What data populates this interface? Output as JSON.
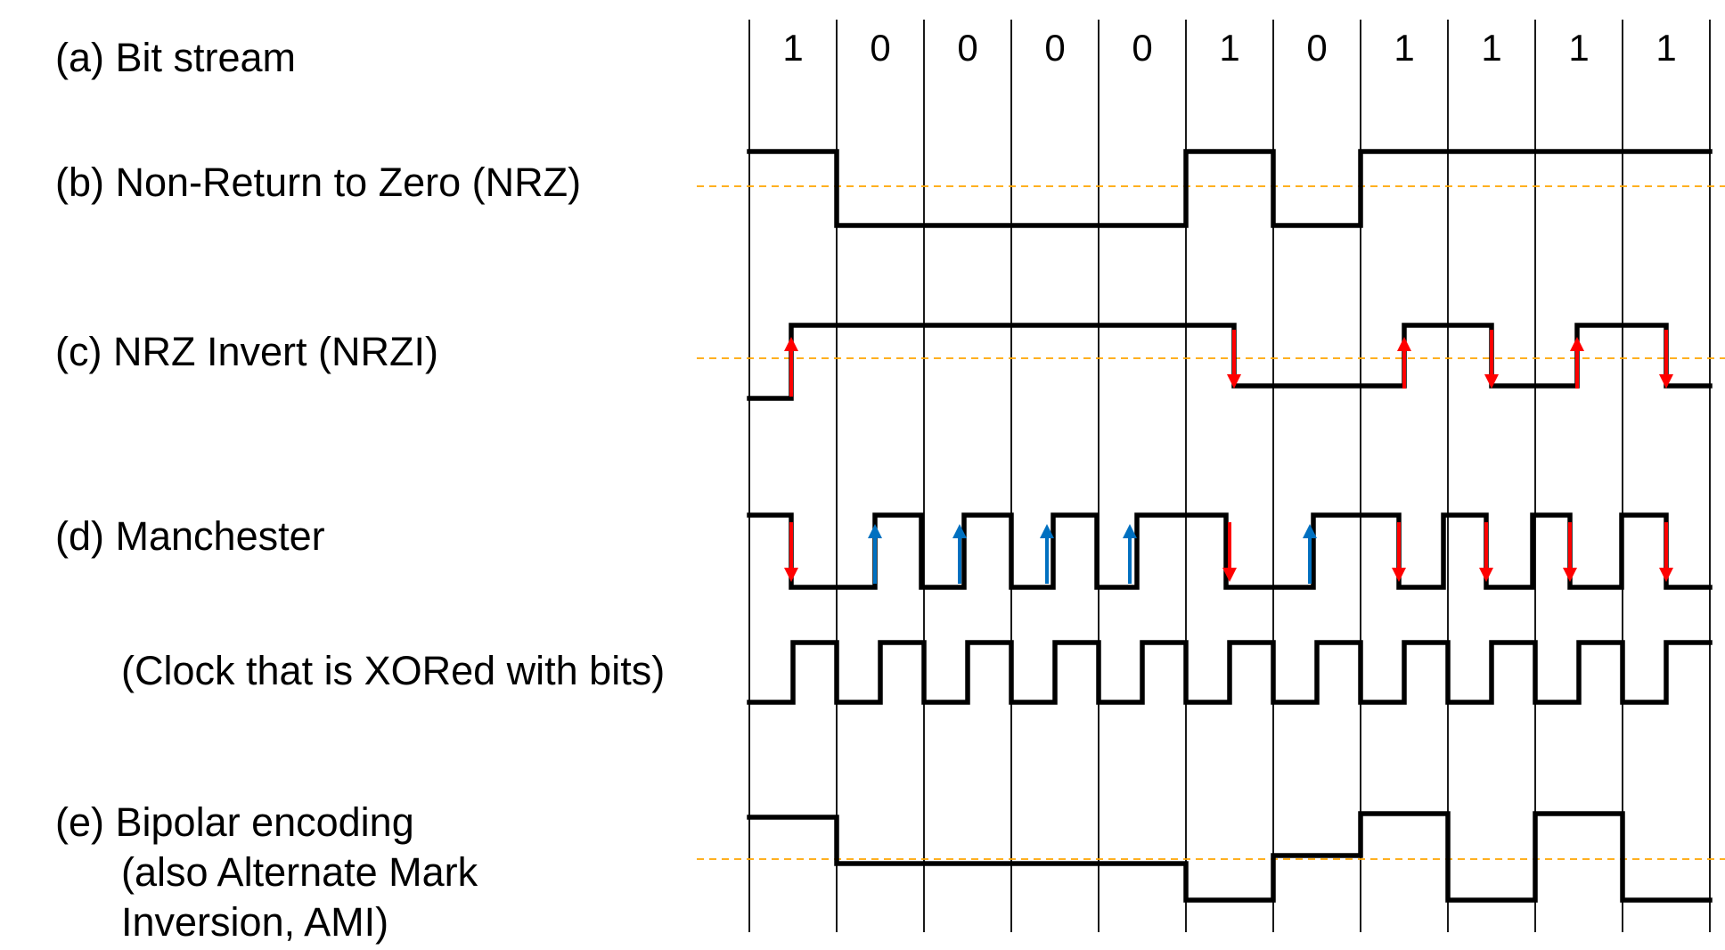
{
  "labels": {
    "bit_stream": "(a) Bit stream",
    "nrz": "(b) Non-Return to Zero (NRZ)",
    "nrzi": "(c) NRZ Invert (NRZI)",
    "manchester": "(d) Manchester",
    "clock": "(Clock that is XORed with bits)",
    "bipolar_line1": "(e) Bipolar encoding",
    "bipolar_line2": "(also Alternate Mark",
    "bipolar_line3": "Inversion, AMI)"
  },
  "bits": [
    "1",
    "0",
    "0",
    "0",
    "0",
    "1",
    "0",
    "1",
    "1",
    "1",
    "1"
  ],
  "colors": {
    "falling_arrow": "#ff0000",
    "rising_arrow": "#0070c0",
    "baseline": "#ffa500",
    "signal": "#000000"
  }
}
